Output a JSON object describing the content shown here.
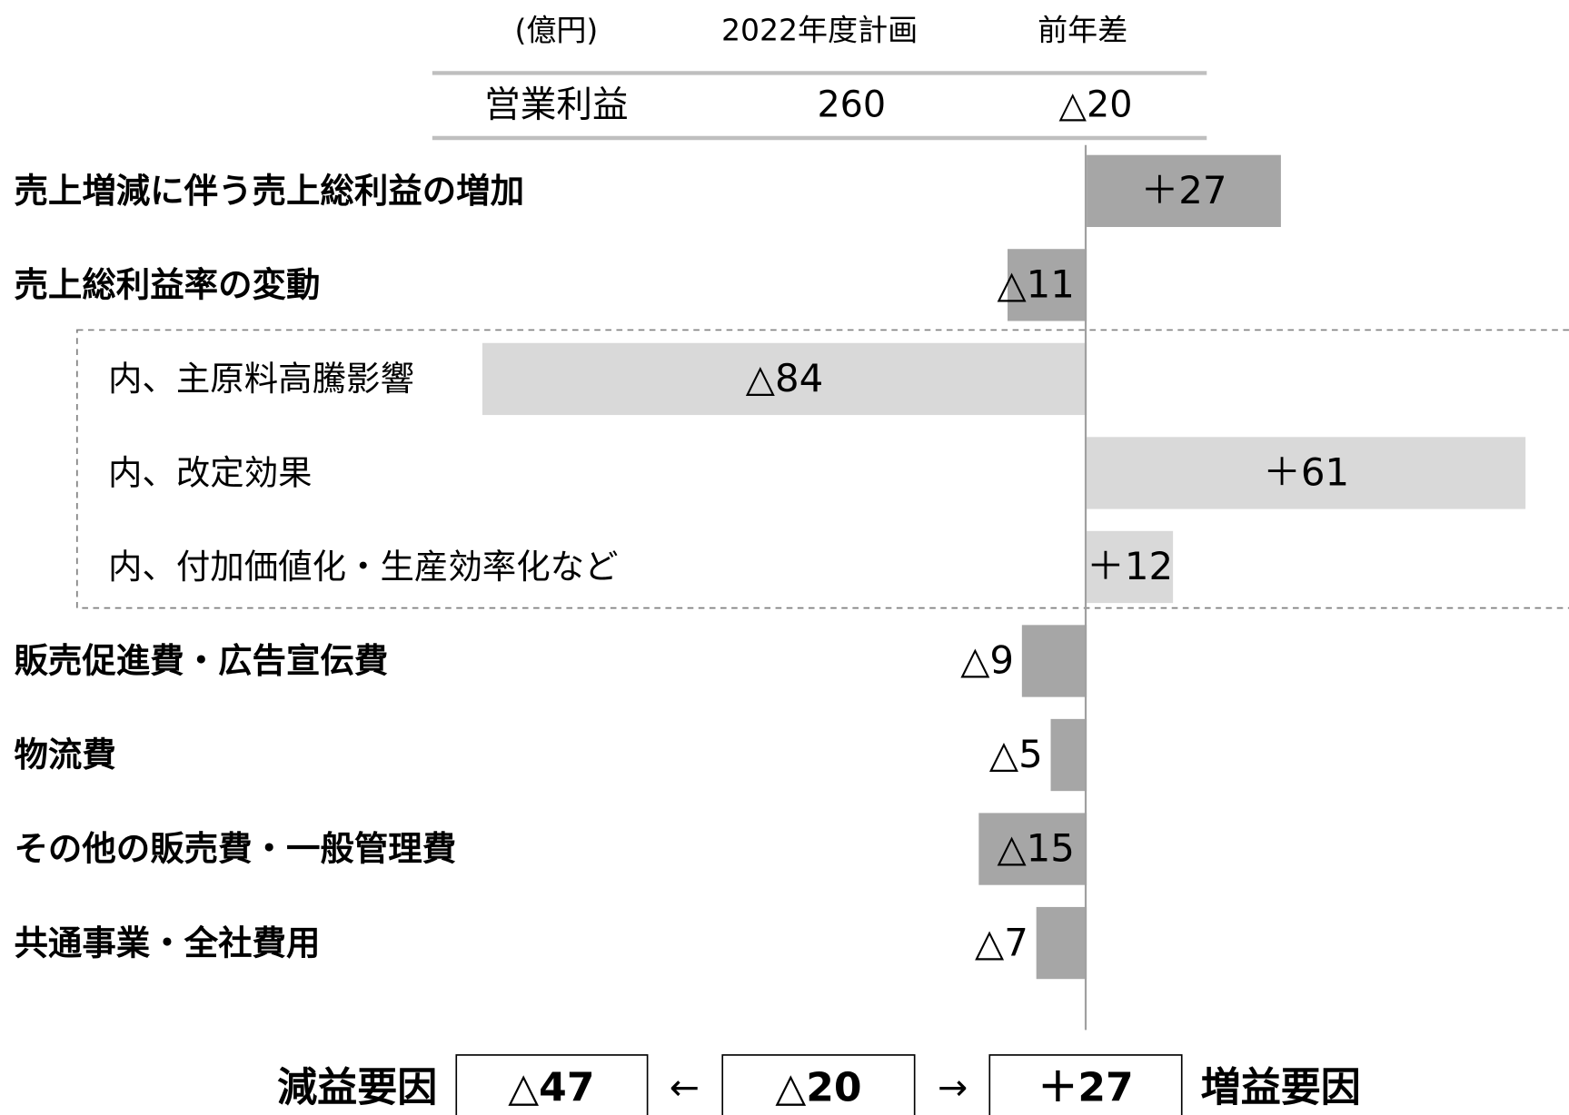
{
  "table": {
    "header": [
      "(億円)",
      "2022年度計画",
      "前年差"
    ],
    "rows": [
      [
        "営業利益",
        "260",
        "△20"
      ]
    ]
  },
  "chart_data": {
    "type": "bar",
    "orientation": "horizontal",
    "categories": [
      "売上増減に伴う売上総利益の増加",
      "売上総利益率の変動",
      "内、主原料高騰影響",
      "内、改定効果",
      "内、付加価値化・生産効率化など",
      "販売促進費・広告宣伝費",
      "物流費",
      "その他の販売費・一般管理費",
      "共通事業・全社費用"
    ],
    "values": [
      27,
      -11,
      -84,
      61,
      12,
      -9,
      -5,
      -15,
      -7
    ],
    "value_labels": [
      "＋27",
      "△11",
      "△84",
      "＋61",
      "＋12",
      "△9",
      "△5",
      "△15",
      "△7"
    ],
    "colors": [
      "#a6a6a6",
      "#a6a6a6",
      "#d9d9d9",
      "#d9d9d9",
      "#d9d9d9",
      "#a6a6a6",
      "#a6a6a6",
      "#a6a6a6",
      "#a6a6a6"
    ]
  },
  "summary": {
    "left_label": "減益要因",
    "left": "△47",
    "center": "△20",
    "right": "＋27",
    "right_label": "増益要因",
    "arrows": [
      "←",
      "→"
    ]
  }
}
